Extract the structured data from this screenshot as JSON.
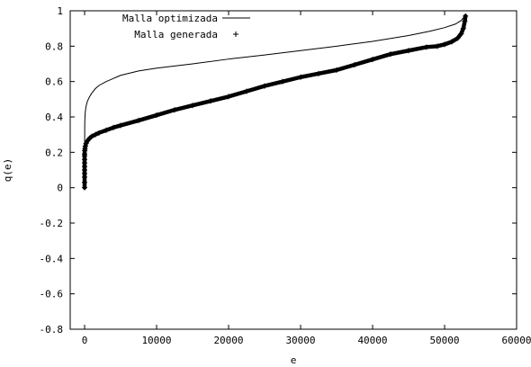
{
  "chart_data": {
    "type": "line",
    "xlabel": "e",
    "ylabel": "q(e)",
    "xlim": [
      -2000,
      60000
    ],
    "ylim": [
      -0.8,
      1.0
    ],
    "xticks": [
      0,
      10000,
      20000,
      30000,
      40000,
      50000,
      60000
    ],
    "xtick_labels": [
      "0",
      "10000",
      "20000",
      "30000",
      "40000",
      "50000",
      "60000"
    ],
    "yticks": [
      -0.8,
      -0.6,
      -0.4,
      -0.2,
      0,
      0.2,
      0.4,
      0.6,
      0.8,
      1.0
    ],
    "ytick_labels": [
      "-0.8",
      "-0.6",
      "-0.4",
      "-0.2",
      "0",
      "0.2",
      "0.4",
      "0.6",
      "0.8",
      "1"
    ],
    "grid": false,
    "legend_position": "top-left",
    "series": [
      {
        "name": "Malla optimizada",
        "style": "line",
        "color": "#000000",
        "x": [
          0,
          20,
          50,
          100,
          200,
          400,
          700,
          1000,
          1500,
          2000,
          3000,
          5000,
          7500,
          10000,
          15000,
          20000,
          25000,
          30000,
          35000,
          40000,
          45000,
          48000,
          50000,
          51500,
          52300,
          52700,
          52900
        ],
        "y": [
          0.21,
          0.36,
          0.4,
          0.43,
          0.46,
          0.49,
          0.515,
          0.535,
          0.56,
          0.578,
          0.6,
          0.635,
          0.66,
          0.676,
          0.7,
          0.727,
          0.75,
          0.775,
          0.8,
          0.827,
          0.86,
          0.885,
          0.905,
          0.925,
          0.945,
          0.965,
          0.98
        ]
      },
      {
        "name": "Malla generada",
        "style": "points",
        "color": "#000000",
        "x": [
          0,
          0,
          0,
          0,
          0,
          0,
          0,
          0,
          0,
          0,
          20,
          50,
          100,
          200,
          400,
          700,
          1000,
          1500,
          2000,
          3000,
          4000,
          5000,
          7500,
          10000,
          12500,
          15000,
          17500,
          20000,
          22500,
          25000,
          27500,
          30000,
          32500,
          35000,
          37500,
          40000,
          42500,
          45000,
          47500,
          49000,
          50000,
          51000,
          51800,
          52300,
          52600,
          52800,
          52900
        ],
        "y": [
          0.0,
          0.03,
          0.06,
          0.08,
          0.1,
          0.12,
          0.14,
          0.16,
          0.18,
          0.19,
          0.21,
          0.22,
          0.235,
          0.25,
          0.265,
          0.28,
          0.29,
          0.3,
          0.31,
          0.325,
          0.34,
          0.352,
          0.38,
          0.41,
          0.44,
          0.465,
          0.49,
          0.515,
          0.545,
          0.575,
          0.6,
          0.625,
          0.645,
          0.665,
          0.695,
          0.725,
          0.755,
          0.775,
          0.795,
          0.8,
          0.81,
          0.825,
          0.845,
          0.87,
          0.9,
          0.94,
          0.97
        ]
      }
    ]
  }
}
